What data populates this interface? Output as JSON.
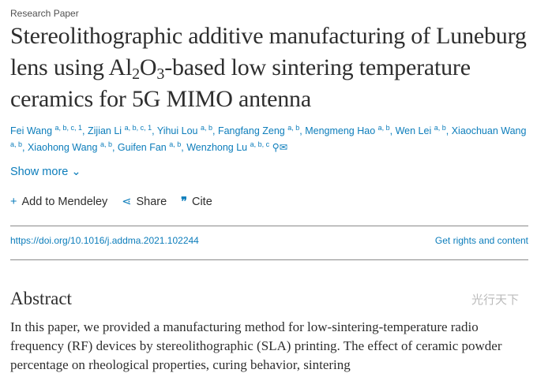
{
  "article": {
    "type_label": "Research Paper",
    "title_parts": [
      "Stereolithographic additive manufacturing of Luneburg lens using Al",
      "2",
      "O",
      "3",
      "-based low sintering temperature ceramics for 5G MIMO antenna"
    ],
    "authors": [
      {
        "name": "Fei Wang",
        "aff": "a, b, c, 1"
      },
      {
        "name": "Zijian Li",
        "aff": "a, b, c, 1"
      },
      {
        "name": "Yihui Lou",
        "aff": "a, b"
      },
      {
        "name": "Fangfang Zeng",
        "aff": "a, b"
      },
      {
        "name": "Mengmeng Hao",
        "aff": "a, b"
      },
      {
        "name": "Wen Lei",
        "aff": "a, b"
      },
      {
        "name": "Xiaochuan Wang",
        "aff": "a, b"
      },
      {
        "name": "Xiaohong Wang",
        "aff": "a, b"
      },
      {
        "name": "Guifen Fan",
        "aff": "a, b"
      },
      {
        "name": "Wenzhong Lu",
        "aff": "a, b, c"
      }
    ],
    "show_more": "Show more",
    "actions": {
      "mendeley": "Add to Mendeley",
      "share": "Share",
      "cite": "Cite"
    },
    "doi": "https://doi.org/10.1016/j.addma.2021.102244",
    "rights": "Get rights and content",
    "abstract_heading": "Abstract",
    "abstract_text": "In this paper, we provided a manufacturing method for low-sintering-temperature radio frequency (RF) devices by stereolithographic (SLA) printing. The effect of ceramic powder percentage on rheological properties, curing behavior, sintering"
  },
  "watermark": "光行天下",
  "colors": {
    "link": "#0c7dbb",
    "text": "#2e2e2e"
  }
}
